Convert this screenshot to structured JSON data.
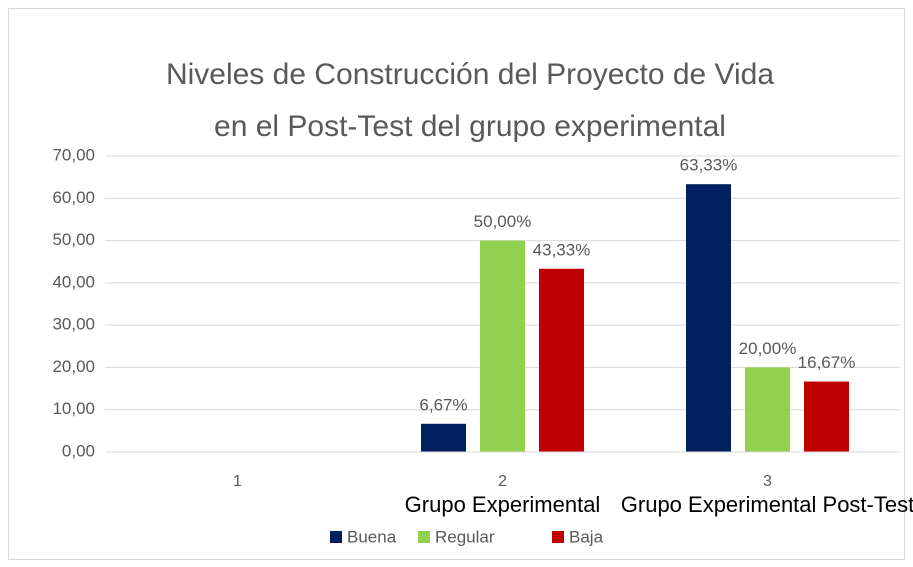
{
  "chart_data": {
    "type": "bar",
    "title": [
      "Niveles de Construcción del Proyecto de Vida",
      "en el Post-Test del grupo experimental"
    ],
    "categories": [
      "1",
      "2",
      "3"
    ],
    "group_labels": [
      null,
      "Grupo Experimental",
      "Grupo Experimental Post-Test"
    ],
    "series": [
      {
        "name": "Buena",
        "color": "#002060",
        "values": [
          null,
          6.67,
          63.33
        ],
        "value_labels": [
          null,
          "6,67%",
          "63,33%"
        ]
      },
      {
        "name": "Regular",
        "color": "#92d050",
        "values": [
          null,
          50,
          20
        ],
        "value_labels": [
          null,
          "50,00%",
          "20,00%"
        ]
      },
      {
        "name": "Baja",
        "color": "#c00000",
        "values": [
          null,
          43.33,
          16.67
        ],
        "value_labels": [
          null,
          "43,33%",
          "16,67%"
        ]
      }
    ],
    "ylim": [
      0,
      70
    ],
    "yticks": [
      {
        "value": 0,
        "label": "0,00"
      },
      {
        "value": 10,
        "label": "10,00"
      },
      {
        "value": 20,
        "label": "20,00"
      },
      {
        "value": 30,
        "label": "30,00"
      },
      {
        "value": 40,
        "label": "40,00"
      },
      {
        "value": 50,
        "label": "50,00"
      },
      {
        "value": 60,
        "label": "60,00"
      },
      {
        "value": 70,
        "label": "70,00"
      }
    ],
    "grid": true,
    "legend": "bottom"
  }
}
